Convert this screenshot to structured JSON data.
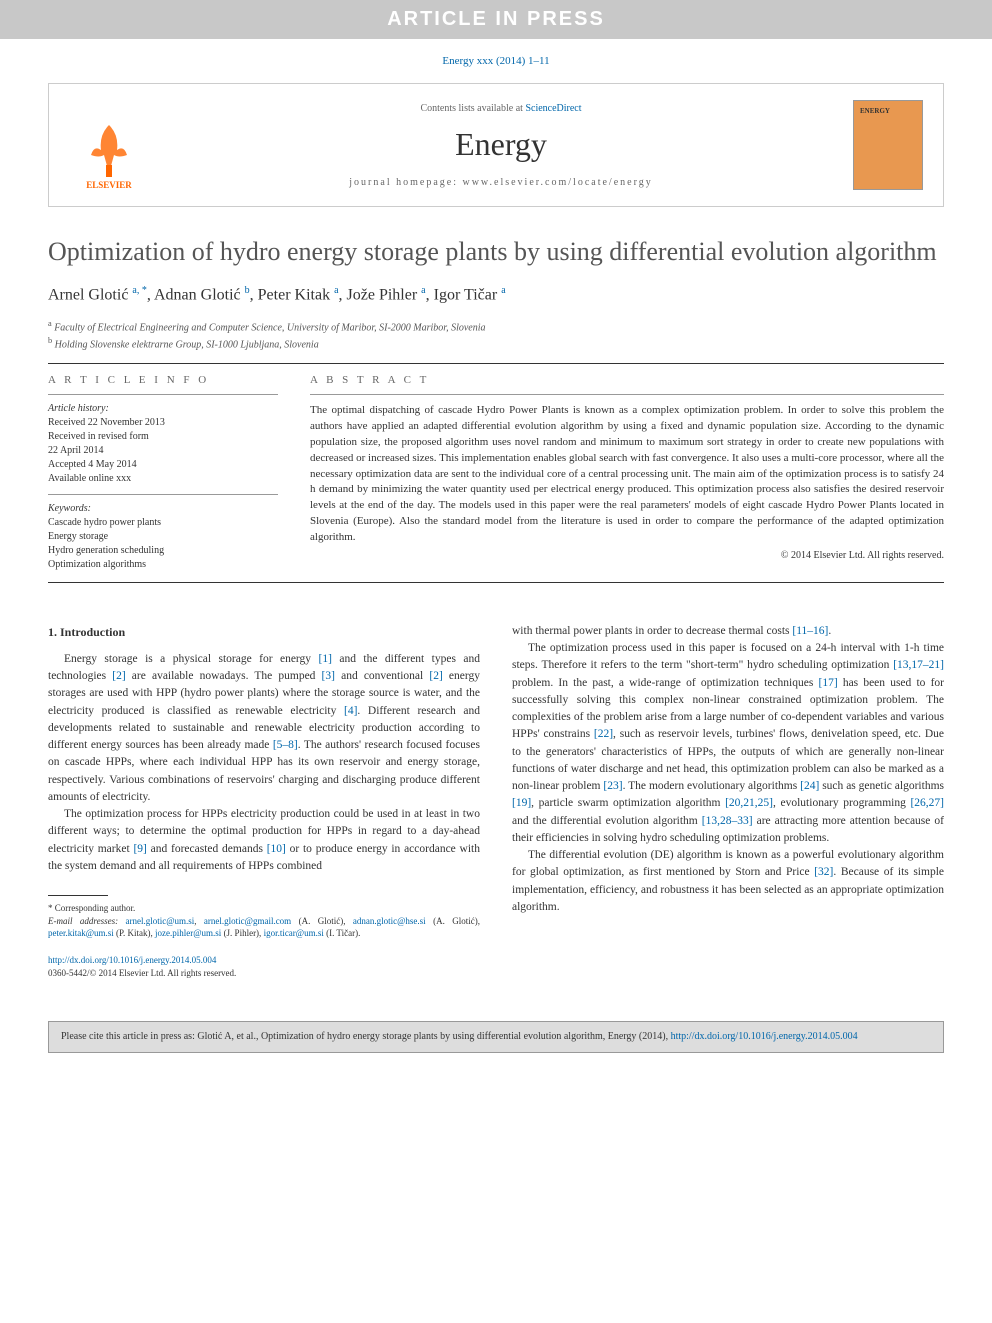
{
  "banner": {
    "text": "ARTICLE IN PRESS"
  },
  "journal_ref": "Energy xxx (2014) 1–11",
  "header": {
    "contents_prefix": "Contents lists available at ",
    "contents_link": "ScienceDirect",
    "journal_name": "Energy",
    "homepage_prefix": "journal homepage: ",
    "homepage_url": "www.elsevier.com/locate/energy",
    "publisher": "ELSEVIER",
    "cover_title": "ENERGY"
  },
  "title": "Optimization of hydro energy storage plants by using differential evolution algorithm",
  "authors_html": "Arnel Glotić <sup>a, *</sup>, Adnan Glotić <sup>b</sup>, Peter Kitak <sup>a</sup>, Jože Pihler <sup>a</sup>, Igor Tičar <sup>a</sup>",
  "affiliations": [
    {
      "sup": "a",
      "text": "Faculty of Electrical Engineering and Computer Science, University of Maribor, SI-2000 Maribor, Slovenia"
    },
    {
      "sup": "b",
      "text": "Holding Slovenske elektrarne Group, SI-1000 Ljubljana, Slovenia"
    }
  ],
  "article_info": {
    "heading": "A R T I C L E  I N F O",
    "history_label": "Article history:",
    "history": [
      "Received 22 November 2013",
      "Received in revised form",
      "22 April 2014",
      "Accepted 4 May 2014",
      "Available online xxx"
    ],
    "keywords_label": "Keywords:",
    "keywords": [
      "Cascade hydro power plants",
      "Energy storage",
      "Hydro generation scheduling",
      "Optimization algorithms"
    ]
  },
  "abstract": {
    "heading": "A B S T R A C T",
    "text": "The optimal dispatching of cascade Hydro Power Plants is known as a complex optimization problem. In order to solve this problem the authors have applied an adapted differential evolution algorithm by using a fixed and dynamic population size. According to the dynamic population size, the proposed algorithm uses novel random and minimum to maximum sort strategy in order to create new populations with decreased or increased sizes. This implementation enables global search with fast convergence. It also uses a multi-core processor, where all the necessary optimization data are sent to the individual core of a central processing unit. The main aim of the optimization process is to satisfy 24 h demand by minimizing the water quantity used per electrical energy produced. This optimization process also satisfies the desired reservoir levels at the end of the day. The models used in this paper were the real parameters' models of eight cascade Hydro Power Plants located in Slovenia (Europe). Also the standard model from the literature is used in order to compare the performance of the adapted optimization algorithm.",
    "copyright": "© 2014 Elsevier Ltd. All rights reserved."
  },
  "section1": {
    "heading": "1. Introduction",
    "p1_parts": [
      "Energy storage is a physical storage for energy ",
      "[1]",
      " and the different types and technologies ",
      "[2]",
      " are available nowadays. The pumped ",
      "[3]",
      " and conventional ",
      "[2]",
      " energy storages are used with HPP (hydro power plants) where the storage source is water, and the electricity produced is classified as renewable electricity ",
      "[4]",
      ". Different research and developments related to sustainable and renewable electricity production according to different energy sources has been already made ",
      "[5–8]",
      ". The authors' research focused focuses on cascade HPPs, where each individual HPP has its own reservoir and energy storage, respectively. Various combinations of reservoirs' charging and discharging produce different amounts of electricity."
    ],
    "p2_parts": [
      "The optimization process for HPPs electricity production could be used in at least in two different ways; to determine the optimal production for HPPs in regard to a day-ahead electricity market ",
      "[9]",
      " and forecasted demands ",
      "[10]",
      " or to produce energy in accordance with the system demand and all requirements of HPPs combined"
    ],
    "p3_parts": [
      "with thermal power plants in order to decrease thermal costs ",
      "[11–16]",
      "."
    ],
    "p4_parts": [
      "The optimization process used in this paper is focused on a 24-h interval with 1-h time steps. Therefore it refers to the term \"short-term\" hydro scheduling optimization ",
      "[13,17–21]",
      " problem. In the past, a wide-range of optimization techniques ",
      "[17]",
      " has been used to for successfully solving this complex non-linear constrained optimization problem. The complexities of the problem arise from a large number of co-dependent variables and various HPPs' constrains ",
      "[22]",
      ", such as reservoir levels, turbines' flows, denivelation speed, etc. Due to the generators' characteristics of HPPs, the outputs of which are generally non-linear functions of water discharge and net head, this optimization problem can also be marked as a non-linear problem ",
      "[23]",
      ". The modern evolutionary algorithms ",
      "[24]",
      " such as genetic algorithms ",
      "[19]",
      ", particle swarm optimization algorithm ",
      "[20,21,25]",
      ", evolutionary programming ",
      "[26,27]",
      " and the differential evolution algorithm ",
      "[13,28–33]",
      " are attracting more attention because of their efficiencies in solving hydro scheduling optimization problems."
    ],
    "p5_parts": [
      "The differential evolution (DE) algorithm is known as a powerful evolutionary algorithm for global optimization, as first mentioned by Storn and Price ",
      "[32]",
      ". Because of its simple implementation, efficiency, and robustness it has been selected as an appropriate optimization algorithm."
    ]
  },
  "footnotes": {
    "corresp": "* Corresponding author.",
    "email_label": "E-mail addresses:",
    "emails": [
      {
        "addr": "arnel.glotic@um.si",
        "sep": ", "
      },
      {
        "addr": "arnel.glotic@gmail.com",
        "sep": " (A. Glotić), "
      },
      {
        "addr": "adnan.glotic@hse.si",
        "sep": " (A. Glotić), "
      },
      {
        "addr": "peter.kitak@um.si",
        "sep": " (P. Kitak), "
      },
      {
        "addr": "joze.pihler@um.si",
        "sep": " (J. Pihler), "
      },
      {
        "addr": "igor.ticar@um.si",
        "sep": " (I. Tičar)."
      }
    ]
  },
  "doi": {
    "url": "http://dx.doi.org/10.1016/j.energy.2014.05.004",
    "issn": "0360-5442/© 2014 Elsevier Ltd. All rights reserved."
  },
  "cite_box": {
    "text": "Please cite this article in press as: Glotić A, et al., Optimization of hydro energy storage plants by using differential evolution algorithm, Energy (2014), ",
    "url": "http://dx.doi.org/10.1016/j.energy.2014.05.004"
  },
  "colors": {
    "link": "#0066aa",
    "banner_bg": "#c8c8c8",
    "banner_text": "#ffffff",
    "elsevier_orange": "#ff6600",
    "cover_bg": "#e89850",
    "citebox_bg": "#dddddd"
  }
}
